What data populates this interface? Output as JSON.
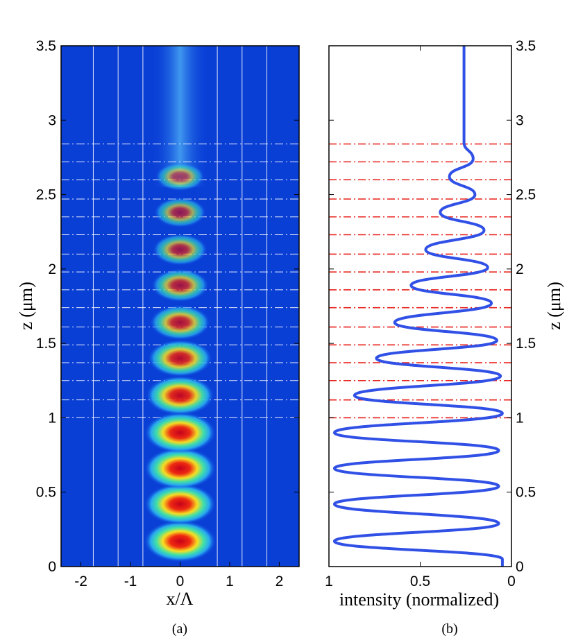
{
  "chart_data": [
    {
      "type": "heatmap",
      "panel_label": "(a)",
      "xlabel": "x/Λ",
      "ylabel": "z (μm)",
      "xlim": [
        -2.4,
        2.4
      ],
      "ylim": [
        0,
        3.5
      ],
      "xticks": [
        "-2",
        "-1",
        "0",
        "1",
        "2"
      ],
      "yticks": [
        "0",
        "0.5",
        "1",
        "1.5",
        "2",
        "2.5",
        "3",
        "3.5"
      ],
      "colormap": "jet",
      "grid_x_lines": [
        -1.75,
        -1.25,
        -0.75,
        0.75,
        1.25,
        1.75,
        2.4
      ],
      "dashdot_z_lines": [
        1.0,
        1.12,
        1.25,
        1.37,
        1.49,
        1.61,
        1.74,
        1.86,
        1.98,
        2.1,
        2.23,
        2.35,
        2.47,
        2.6,
        2.72,
        2.84
      ],
      "hotspots": [
        {
          "z": 0.17,
          "intensity": 1.0
        },
        {
          "z": 0.42,
          "intensity": 0.98
        },
        {
          "z": 0.66,
          "intensity": 0.98
        },
        {
          "z": 0.9,
          "intensity": 0.97
        },
        {
          "z": 1.15,
          "intensity": 0.88
        },
        {
          "z": 1.4,
          "intensity": 0.76
        },
        {
          "z": 1.64,
          "intensity": 0.64
        },
        {
          "z": 1.89,
          "intensity": 0.54
        },
        {
          "z": 2.13,
          "intensity": 0.46
        },
        {
          "z": 2.38,
          "intensity": 0.38
        },
        {
          "z": 2.62,
          "intensity": 0.3
        }
      ]
    },
    {
      "type": "line",
      "panel_label": "(b)",
      "xlabel": "intensity (normalized)",
      "ylabel": "z (μm)",
      "xlim": [
        1,
        0
      ],
      "ylim": [
        0,
        3.5
      ],
      "xticks": [
        "1",
        "0.5",
        "0"
      ],
      "yticks": [
        "0",
        "0.5",
        "1",
        "1.5",
        "2",
        "2.5",
        "3",
        "3.5"
      ],
      "line_color": "#3050e6",
      "dashdot_color": "#e8201a",
      "dashdot_z_lines": [
        1.0,
        1.12,
        1.25,
        1.37,
        1.49,
        1.61,
        1.74,
        1.86,
        1.98,
        2.1,
        2.23,
        2.35,
        2.47,
        2.6,
        2.72,
        2.84
      ],
      "series": [
        {
          "z": [
            0.05,
            0.17,
            0.29,
            0.42,
            0.54,
            0.66,
            0.78,
            0.9,
            1.03,
            1.15,
            1.28,
            1.4,
            1.52,
            1.64,
            1.77,
            1.89,
            2.01,
            2.13,
            2.26,
            2.38,
            2.5,
            2.62,
            2.74,
            2.85,
            3.5
          ],
          "intensity": [
            0.05,
            0.97,
            0.07,
            0.97,
            0.07,
            0.97,
            0.07,
            0.97,
            0.05,
            0.86,
            0.06,
            0.74,
            0.08,
            0.64,
            0.11,
            0.55,
            0.13,
            0.47,
            0.15,
            0.39,
            0.2,
            0.34,
            0.21,
            0.26,
            0.26
          ]
        }
      ]
    }
  ]
}
